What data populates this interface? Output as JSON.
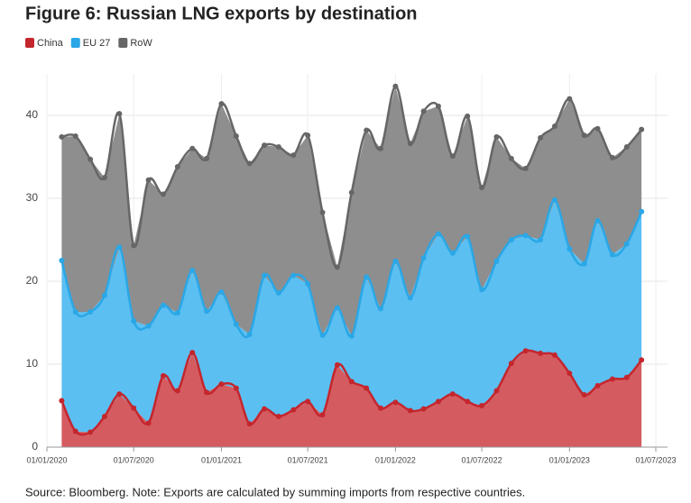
{
  "chart_data": {
    "type": "stacked_area",
    "title": "Figure 6: Russian LNG exports by destination",
    "source": "Source: Bloomberg. Note: Exports are calculated by summing imports from respective countries.",
    "x": [
      "2020-02-01",
      "2020-03-01",
      "2020-04-01",
      "2020-05-01",
      "2020-06-01",
      "2020-07-01",
      "2020-08-01",
      "2020-09-01",
      "2020-10-01",
      "2020-11-01",
      "2020-12-01",
      "2021-01-01",
      "2021-02-01",
      "2021-03-01",
      "2021-04-01",
      "2021-05-01",
      "2021-06-01",
      "2021-07-01",
      "2021-08-01",
      "2021-09-01",
      "2021-10-01",
      "2021-11-01",
      "2021-12-01",
      "2022-01-01",
      "2022-02-01",
      "2022-03-01",
      "2022-04-01",
      "2022-05-01",
      "2022-06-01",
      "2022-07-01",
      "2022-08-01",
      "2022-09-01",
      "2022-10-01",
      "2022-11-01",
      "2022-12-01",
      "2023-01-01",
      "2023-02-01",
      "2023-03-01",
      "2023-04-01",
      "2023-05-01",
      "2023-06-01"
    ],
    "series": [
      {
        "name": "China",
        "color": "#c4262e",
        "fill": "#d45c60",
        "values": [
          5.6,
          1.9,
          1.8,
          3.7,
          6.4,
          4.7,
          2.9,
          8.6,
          6.8,
          11.4,
          6.6,
          7.6,
          7.1,
          2.8,
          4.6,
          3.7,
          4.5,
          5.5,
          3.9,
          9.9,
          7.9,
          7.1,
          4.7,
          5.4,
          4.4,
          4.6,
          5.5,
          6.4,
          5.5,
          5.0,
          6.8,
          10.1,
          11.6,
          11.3,
          11.1,
          8.9,
          6.3,
          7.4,
          8.2,
          8.4,
          10.5
        ]
      },
      {
        "name": "EU 27",
        "color": "#2aa7e6",
        "fill": "#5bbff2",
        "values": [
          16.9,
          14.4,
          14.5,
          14.6,
          17.7,
          10.5,
          11.7,
          8.5,
          9.4,
          9.9,
          9.8,
          11.1,
          7.7,
          10.8,
          16.1,
          14.9,
          16.2,
          14.2,
          9.6,
          6.9,
          5.5,
          13.4,
          12.0,
          17.0,
          13.6,
          18.2,
          20.2,
          17.0,
          19.9,
          14.0,
          15.6,
          14.9,
          13.9,
          13.7,
          18.7,
          15.0,
          15.8,
          19.9,
          15.0,
          16.1,
          17.9
        ]
      },
      {
        "name": "RoW",
        "color": "#666666",
        "fill": "#8e8e8e",
        "values": [
          14.9,
          21.2,
          18.4,
          14.2,
          16.1,
          9.1,
          17.6,
          13.4,
          17.6,
          14.7,
          18.4,
          22.7,
          22.7,
          20.6,
          15.7,
          17.6,
          14.5,
          17.9,
          14.8,
          4.9,
          17.3,
          17.7,
          19.3,
          21.1,
          18.6,
          17.7,
          15.4,
          11.7,
          14.5,
          12.3,
          15.0,
          9.8,
          8.1,
          12.3,
          8.9,
          18.1,
          15.5,
          11.1,
          11.7,
          11.7,
          9.9
        ]
      }
    ],
    "xlim": [
      "2020-01-01",
      "2023-07-01"
    ],
    "xticks": [
      {
        "value": "2020-01-01",
        "label": "01/01/2020"
      },
      {
        "value": "2020-07-01",
        "label": "01/07/2020"
      },
      {
        "value": "2021-01-01",
        "label": "01/01/2021"
      },
      {
        "value": "2021-07-01",
        "label": "01/07/2021"
      },
      {
        "value": "2022-01-01",
        "label": "01/01/2022"
      },
      {
        "value": "2022-07-01",
        "label": "01/07/2022"
      },
      {
        "value": "2023-01-01",
        "label": "01/01/2023"
      },
      {
        "value": "2023-07-01",
        "label": "01/07/2023"
      }
    ],
    "ylim": [
      0,
      45
    ],
    "yticks": [
      0,
      10,
      20,
      30,
      40
    ],
    "grid": true
  }
}
